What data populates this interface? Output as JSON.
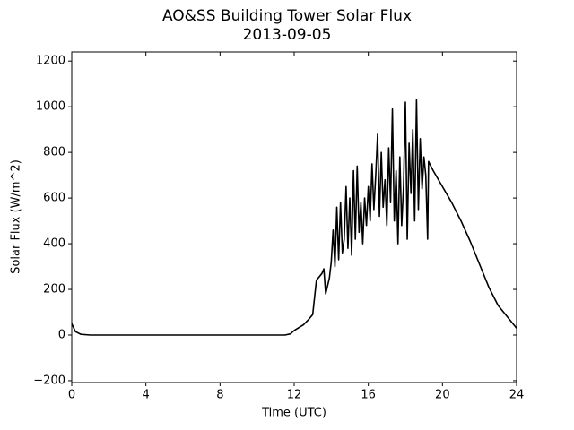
{
  "chart_data": {
    "type": "line",
    "title": "AO&SS Building Tower Solar Flux",
    "subtitle": "2013-09-05",
    "x_label": "Time (UTC)",
    "y_label": "Solar Flux (W/m^2)",
    "color": "#000000",
    "xlim": [
      0,
      24
    ],
    "xticks": [
      0,
      4,
      8,
      12,
      16,
      20,
      24
    ],
    "ylim": [
      -208,
      1240
    ],
    "yticks": [
      {
        "value": -200,
        "label": "−200"
      },
      0,
      200,
      400,
      600,
      800,
      1000,
      1200
    ],
    "x": [
      0,
      0.2,
      0.5,
      1,
      11.5,
      11.8,
      12,
      12.3,
      12.5,
      12.8,
      13,
      13.2,
      13.5,
      13.6,
      13.7,
      13.9,
      14,
      14.1,
      14.2,
      14.3,
      14.4,
      14.5,
      14.6,
      14.7,
      14.8,
      14.9,
      15,
      15.1,
      15.2,
      15.3,
      15.4,
      15.5,
      15.6,
      15.7,
      15.8,
      15.9,
      16,
      16.1,
      16.2,
      16.3,
      16.4,
      16.5,
      16.6,
      16.7,
      16.8,
      16.9,
      17,
      17.1,
      17.2,
      17.3,
      17.4,
      17.5,
      17.6,
      17.7,
      17.8,
      17.9,
      18,
      18.1,
      18.2,
      18.3,
      18.4,
      18.5,
      18.6,
      18.7,
      18.8,
      18.9,
      19,
      19.1,
      19.2,
      19.25,
      19.5,
      20,
      20.5,
      21,
      21.5,
      22,
      22.5,
      23,
      23.5,
      24
    ],
    "y": [
      50,
      15,
      3,
      0,
      0,
      5,
      20,
      35,
      45,
      70,
      90,
      240,
      270,
      290,
      180,
      250,
      320,
      460,
      300,
      560,
      330,
      580,
      360,
      420,
      650,
      380,
      600,
      350,
      720,
      420,
      740,
      450,
      580,
      400,
      600,
      480,
      650,
      500,
      750,
      550,
      700,
      880,
      520,
      800,
      560,
      680,
      480,
      820,
      580,
      990,
      500,
      720,
      400,
      780,
      480,
      650,
      1020,
      420,
      840,
      620,
      900,
      500,
      1030,
      550,
      860,
      640,
      780,
      700,
      420,
      760,
      720,
      650,
      580,
      500,
      410,
      310,
      210,
      130,
      80,
      30
    ]
  }
}
